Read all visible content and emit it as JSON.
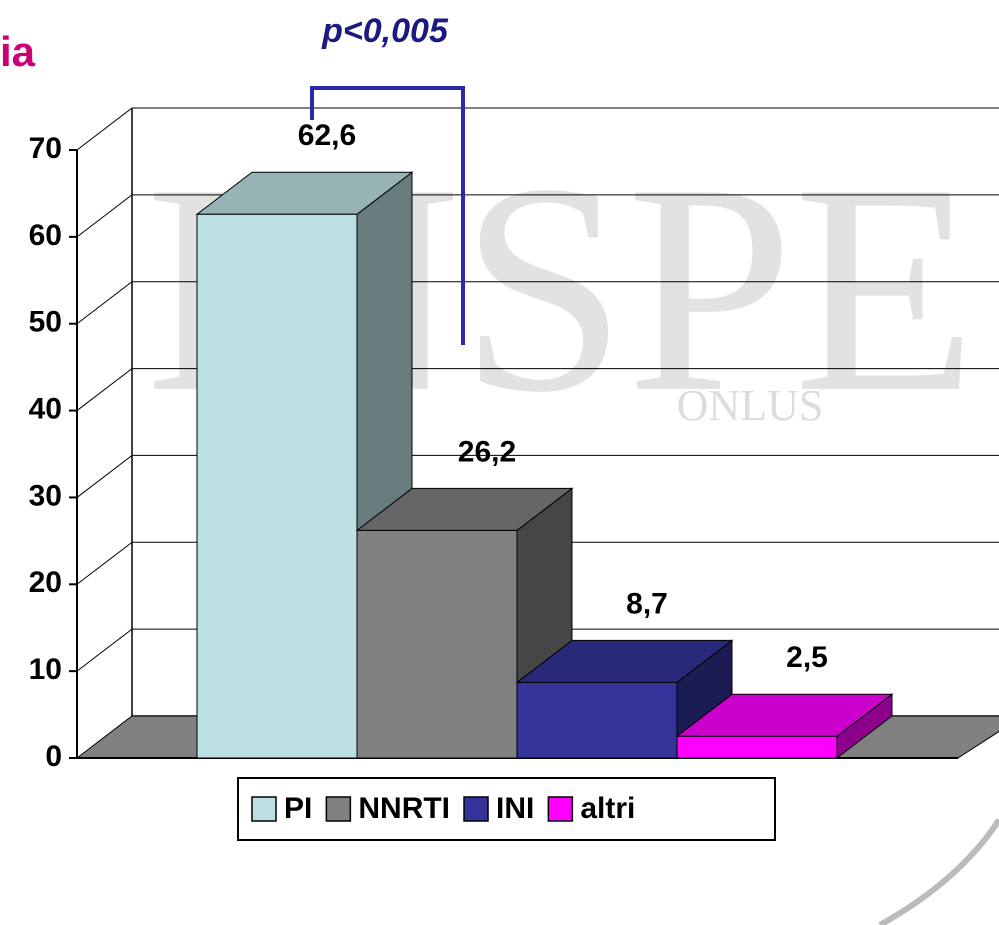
{
  "chart_data": {
    "type": "bar3d",
    "title": "ia",
    "annotation": "p<0,005",
    "xlabel": "%",
    "categories": [
      "%"
    ],
    "series": [
      {
        "name": "PI",
        "color": "#bde0e4",
        "values": [
          62.6
        ],
        "value_labels": [
          "62,6"
        ]
      },
      {
        "name": "NNRTI",
        "color": "#808080",
        "values": [
          26.2
        ],
        "value_labels": [
          "26,2"
        ]
      },
      {
        "name": "INI",
        "color": "#333399",
        "values": [
          8.7
        ],
        "value_labels": [
          "8,7"
        ]
      },
      {
        "name": "altri",
        "color": "#ff00ff",
        "values": [
          2.5
        ],
        "value_labels": [
          "2,5"
        ]
      }
    ],
    "ylim": [
      0,
      70
    ],
    "yticks": [
      0,
      10,
      20,
      30,
      40,
      50,
      60,
      70
    ],
    "grid": true,
    "legend": "bottom"
  },
  "watermark": {
    "text": "INSPE",
    "sub": "ONLUS"
  }
}
